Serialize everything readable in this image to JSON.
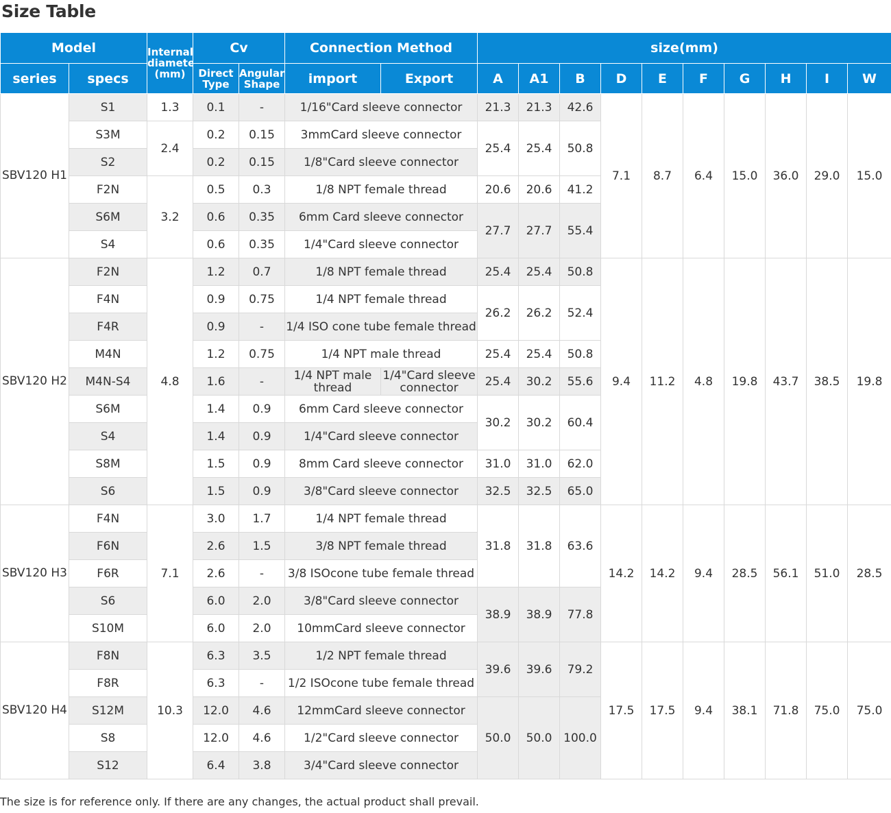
{
  "title": "Size Table",
  "header": {
    "model": "Model",
    "internal_diameter": "Internal diameter (mm)",
    "cv": "Cv",
    "connection_method": "Connection Method",
    "size": "size(mm)",
    "series": "series",
    "specs": "specs",
    "direct_type": "Direct Type",
    "angular_shape": "Angular Shape",
    "import": "import",
    "export": "Export",
    "dims": [
      "A",
      "A1",
      "B",
      "D",
      "E",
      "F",
      "G",
      "H",
      "I",
      "W"
    ]
  },
  "series": [
    {
      "name": "SBV120 H1",
      "groupDims": [
        "7.1",
        "8.7",
        "6.4",
        "15.0",
        "36.0",
        "29.0",
        "15.0"
      ],
      "rows": [
        {
          "spec": "S1",
          "id": "1.3",
          "idSpan": 1,
          "dt": "0.1",
          "ang": "-",
          "conn": "1/16\"Card sleeve connector",
          "abb": [
            "21.3",
            "21.3",
            "42.6"
          ],
          "abbSpan": 1
        },
        {
          "spec": "S3M",
          "id": "2.4",
          "idSpan": 2,
          "dt": "0.2",
          "ang": "0.15",
          "conn": "3mmCard sleeve connector",
          "abb": [
            "25.4",
            "25.4",
            "50.8"
          ],
          "abbSpan": 2
        },
        {
          "spec": "S2",
          "dt": "0.2",
          "ang": "0.15",
          "conn": "1/8\"Card sleeve connector"
        },
        {
          "spec": "F2N",
          "id": "3.2",
          "idSpan": 3,
          "dt": "0.5",
          "ang": "0.3",
          "conn": "1/8 NPT female thread",
          "abb": [
            "20.6",
            "20.6",
            "41.2"
          ],
          "abbSpan": 1
        },
        {
          "spec": "S6M",
          "dt": "0.6",
          "ang": "0.35",
          "conn": "6mm Card sleeve connector",
          "abb": [
            "27.7",
            "27.7",
            "55.4"
          ],
          "abbSpan": 2
        },
        {
          "spec": "S4",
          "dt": "0.6",
          "ang": "0.35",
          "conn": "1/4\"Card sleeve connector"
        }
      ]
    },
    {
      "name": "SBV120 H2",
      "groupDims": [
        "9.4",
        "11.2",
        "4.8",
        "19.8",
        "43.7",
        "38.5",
        "19.8"
      ],
      "rows": [
        {
          "spec": "F2N",
          "id": "4.8",
          "idSpan": 9,
          "dt": "1.2",
          "ang": "0.7",
          "conn": "1/8 NPT female thread",
          "abb": [
            "25.4",
            "25.4",
            "50.8"
          ],
          "abbSpan": 1
        },
        {
          "spec": "F4N",
          "dt": "0.9",
          "ang": "0.75",
          "conn": "1/4 NPT female thread",
          "abb": [
            "26.2",
            "26.2",
            "52.4"
          ],
          "abbSpan": 2
        },
        {
          "spec": "F4R",
          "dt": "0.9",
          "ang": "-",
          "conn": "1/4 ISO cone tube female thread"
        },
        {
          "spec": "M4N",
          "dt": "1.2",
          "ang": "0.75",
          "conn": "1/4 NPT male thread",
          "abb": [
            "25.4",
            "25.4",
            "50.8"
          ],
          "abbSpan": 1
        },
        {
          "spec": "M4N-S4",
          "dt": "1.6",
          "ang": "-",
          "import": "1/4 NPT male thread",
          "export": "1/4\"Card sleeve connector",
          "abb": [
            "25.4",
            "30.2",
            "55.6"
          ],
          "abbSpan": 1
        },
        {
          "spec": "S6M",
          "dt": "1.4",
          "ang": "0.9",
          "conn": "6mm Card sleeve connector",
          "abb": [
            "30.2",
            "30.2",
            "60.4"
          ],
          "abbSpan": 2
        },
        {
          "spec": "S4",
          "dt": "1.4",
          "ang": "0.9",
          "conn": "1/4\"Card sleeve connector"
        },
        {
          "spec": "S8M",
          "dt": "1.5",
          "ang": "0.9",
          "conn": "8mm Card sleeve connector",
          "abb": [
            "31.0",
            "31.0",
            "62.0"
          ],
          "abbSpan": 1
        },
        {
          "spec": "S6",
          "dt": "1.5",
          "ang": "0.9",
          "conn": "3/8\"Card sleeve connector",
          "abb": [
            "32.5",
            "32.5",
            "65.0"
          ],
          "abbSpan": 1
        }
      ]
    },
    {
      "name": "SBV120 H3",
      "groupDims": [
        "14.2",
        "14.2",
        "9.4",
        "28.5",
        "56.1",
        "51.0",
        "28.5"
      ],
      "rows": [
        {
          "spec": "F4N",
          "id": "7.1",
          "idSpan": 5,
          "dt": "3.0",
          "ang": "1.7",
          "conn": "1/4 NPT female thread",
          "abb": [
            "31.8",
            "31.8",
            "63.6"
          ],
          "abbSpan": 3
        },
        {
          "spec": "F6N",
          "dt": "2.6",
          "ang": "1.5",
          "conn": "3/8 NPT female thread"
        },
        {
          "spec": "F6R",
          "dt": "2.6",
          "ang": "-",
          "conn": "3/8 ISOcone tube female thread"
        },
        {
          "spec": "S6",
          "dt": "6.0",
          "ang": "2.0",
          "conn": "3/8\"Card sleeve connector",
          "abb": [
            "38.9",
            "38.9",
            "77.8"
          ],
          "abbSpan": 2
        },
        {
          "spec": "S10M",
          "dt": "6.0",
          "ang": "2.0",
          "conn": "10mmCard sleeve connector"
        }
      ]
    },
    {
      "name": "SBV120 H4",
      "groupDims": [
        "17.5",
        "17.5",
        "9.4",
        "38.1",
        "71.8",
        "75.0",
        "75.0"
      ],
      "rows": [
        {
          "spec": "F8N",
          "id": "10.3",
          "idSpan": 5,
          "dt": "6.3",
          "ang": "3.5",
          "conn": "1/2 NPT female thread",
          "abb": [
            "39.6",
            "39.6",
            "79.2"
          ],
          "abbSpan": 2
        },
        {
          "spec": "F8R",
          "dt": "6.3",
          "ang": "-",
          "conn": "1/2 ISOcone tube female thread"
        },
        {
          "spec": "S12M",
          "dt": "12.0",
          "ang": "4.6",
          "conn": "12mmCard sleeve connector",
          "abb": [
            "50.0",
            "50.0",
            "100.0"
          ],
          "abbSpan": 3
        },
        {
          "spec": "S8",
          "dt": "12.0",
          "ang": "4.6",
          "conn": "1/2\"Card sleeve connector"
        },
        {
          "spec": "S12",
          "dt": "6.4",
          "ang": "3.8",
          "conn": "3/4\"Card sleeve connector"
        }
      ]
    }
  ],
  "note": "The size is for reference only. If there are any changes, the actual product shall prevail."
}
